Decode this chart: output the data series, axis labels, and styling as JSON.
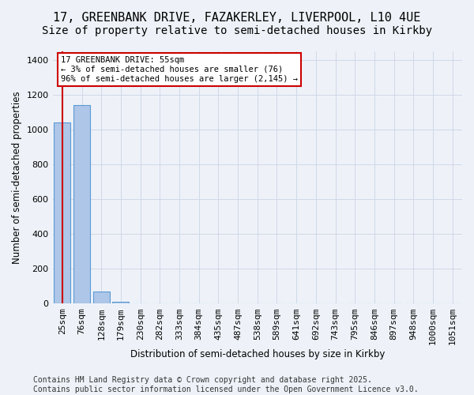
{
  "title_line1": "17, GREENBANK DRIVE, FAZAKERLEY, LIVERPOOL, L10 4UE",
  "title_line2": "Size of property relative to semi-detached houses in Kirkby",
  "xlabel": "Distribution of semi-detached houses by size in Kirkby",
  "ylabel": "Number of semi-detached properties",
  "categories": [
    "25sqm",
    "76sqm",
    "128sqm",
    "179sqm",
    "230sqm",
    "282sqm",
    "333sqm",
    "384sqm",
    "435sqm",
    "487sqm",
    "538sqm",
    "589sqm",
    "641sqm",
    "692sqm",
    "743sqm",
    "795sqm",
    "846sqm",
    "897sqm",
    "948sqm",
    "1000sqm",
    "1051sqm"
  ],
  "values": [
    1040,
    1140,
    70,
    10,
    0,
    0,
    0,
    0,
    0,
    0,
    0,
    0,
    0,
    0,
    0,
    0,
    0,
    0,
    0,
    0,
    0
  ],
  "bar_color": "#aec6e8",
  "bar_edge_color": "#5b9bd5",
  "grid_color": "#d0d8e8",
  "background_color": "#eef2f8",
  "annotation_line1": "17 GREENBANK DRIVE: 55sqm",
  "annotation_line2": "← 3% of semi-detached houses are smaller (76)",
  "annotation_line3": "96% of semi-detached houses are larger (2,145) →",
  "annotation_box_color": "#ffffff",
  "annotation_box_edge": "#cc0000",
  "vline_color": "#cc0000",
  "ylim": [
    0,
    1450
  ],
  "yticks": [
    0,
    200,
    400,
    600,
    800,
    1000,
    1200,
    1400
  ],
  "footer": "Contains HM Land Registry data © Crown copyright and database right 2025.\nContains public sector information licensed under the Open Government Licence v3.0.",
  "footer_fontsize": 7,
  "title_fontsize1": 11,
  "title_fontsize2": 10,
  "label_fontsize": 8.5,
  "tick_fontsize": 8,
  "annot_fontsize": 7.5
}
